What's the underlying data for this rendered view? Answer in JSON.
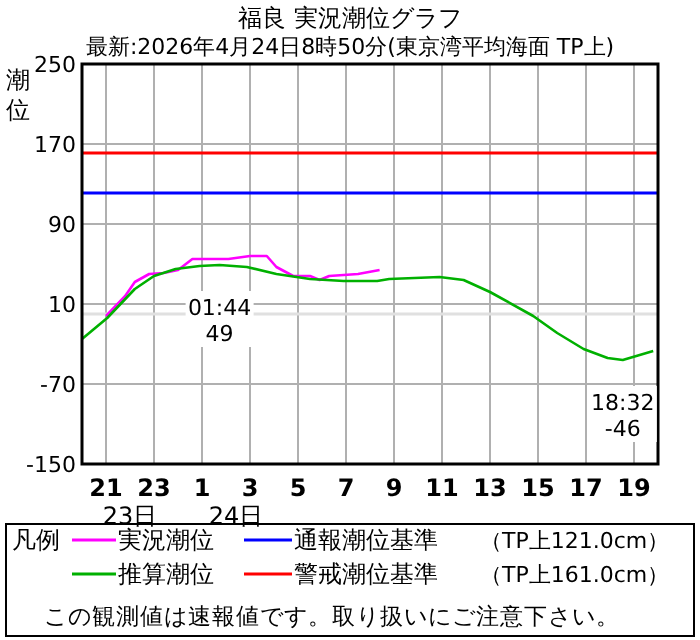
{
  "chart_data": {
    "type": "line",
    "title": "福良 実況潮位グラフ",
    "subtitle": "最新:2026年4月24日8時50分(東京湾平均海面 TP上)",
    "ylabel": "潮位",
    "legend_title": "凡例",
    "xlim": [
      "2026-04-23T20:00",
      "2026-04-24T20:00"
    ],
    "xticks": [
      {
        "value": "2026-04-23T21:00",
        "label": "21"
      },
      {
        "value": "2026-04-23T23:00",
        "label": "23"
      },
      {
        "value": "2026-04-24T01:00",
        "label": "1"
      },
      {
        "value": "2026-04-24T03:00",
        "label": "3"
      },
      {
        "value": "2026-04-24T05:00",
        "label": "5"
      },
      {
        "value": "2026-04-24T07:00",
        "label": "7"
      },
      {
        "value": "2026-04-24T09:00",
        "label": "9"
      },
      {
        "value": "2026-04-24T11:00",
        "label": "11"
      },
      {
        "value": "2026-04-24T13:00",
        "label": "13"
      },
      {
        "value": "2026-04-24T15:00",
        "label": "15"
      },
      {
        "value": "2026-04-24T17:00",
        "label": "17"
      },
      {
        "value": "2026-04-24T19:00",
        "label": "19"
      }
    ],
    "ylim": [
      -150,
      250
    ],
    "yticks": [
      -150,
      -70,
      10,
      90,
      170,
      250
    ],
    "grid": true,
    "legend": "bottom",
    "series": [
      {
        "name": "実況潮位",
        "color": "#ff00ff",
        "x": [
          "2026-04-23T21:00",
          "2026-04-23T21:48",
          "2026-04-23T22:12",
          "2026-04-23T22:48",
          "2026-04-23T23:24",
          "2026-04-24T00:00",
          "2026-04-24T00:36",
          "2026-04-24T01:27",
          "2026-04-24T02:06",
          "2026-04-24T03:00",
          "2026-04-24T03:42",
          "2026-04-24T04:06",
          "2026-04-24T04:48",
          "2026-04-24T05:30",
          "2026-04-24T05:54",
          "2026-04-24T06:18",
          "2026-04-24T07:30",
          "2026-04-24T08:24"
        ],
        "values": [
          -2,
          18,
          32,
          40,
          41,
          44,
          55,
          55,
          55,
          58,
          58,
          47,
          38,
          38,
          34,
          38,
          40,
          44
        ]
      },
      {
        "name": "推算潮位",
        "color": "#00b000",
        "x": [
          "2026-04-23T20:00",
          "2026-04-23T21:03",
          "2026-04-23T22:12",
          "2026-04-23T23:00",
          "2026-04-23T23:54",
          "2026-04-24T00:54",
          "2026-04-24T01:44",
          "2026-04-24T02:52",
          "2026-04-24T04:06",
          "2026-04-24T05:30",
          "2026-04-24T06:54",
          "2026-04-24T08:18",
          "2026-04-24T08:48",
          "2026-04-24T10:54",
          "2026-04-24T11:54",
          "2026-04-24T13:00",
          "2026-04-24T14:48",
          "2026-04-24T15:48",
          "2026-04-24T16:54",
          "2026-04-24T17:54",
          "2026-04-24T18:32",
          "2026-04-24T19:48"
        ],
        "values": [
          -25,
          -4,
          25,
          38,
          45,
          48,
          49,
          47,
          40,
          35,
          33,
          33,
          35,
          37,
          34,
          22,
          -2,
          -19,
          -35,
          -44,
          -46,
          -37
        ]
      }
    ],
    "ref_lines": [
      {
        "axis": "y",
        "value": 121,
        "label": "通報潮位基準",
        "color": "#0000ff"
      },
      {
        "axis": "y",
        "value": 161,
        "label": "警戒潮位基準",
        "color": "#ff0000"
      },
      {
        "axis": "y",
        "value": 0,
        "color": "#e0e0e0"
      }
    ],
    "annotations": [
      {
        "text": "01:44\n49",
        "x": "2026-04-24T01:44",
        "y": 49
      },
      {
        "text": "18:32\n-46",
        "x": "2026-04-24T18:32",
        "y": -46
      },
      "23日",
      "24日",
      "（TP上121.0cm）",
      "（TP上161.0cm）",
      "この観測値は速報値です。取り扱いにご注意下さい。"
    ]
  }
}
